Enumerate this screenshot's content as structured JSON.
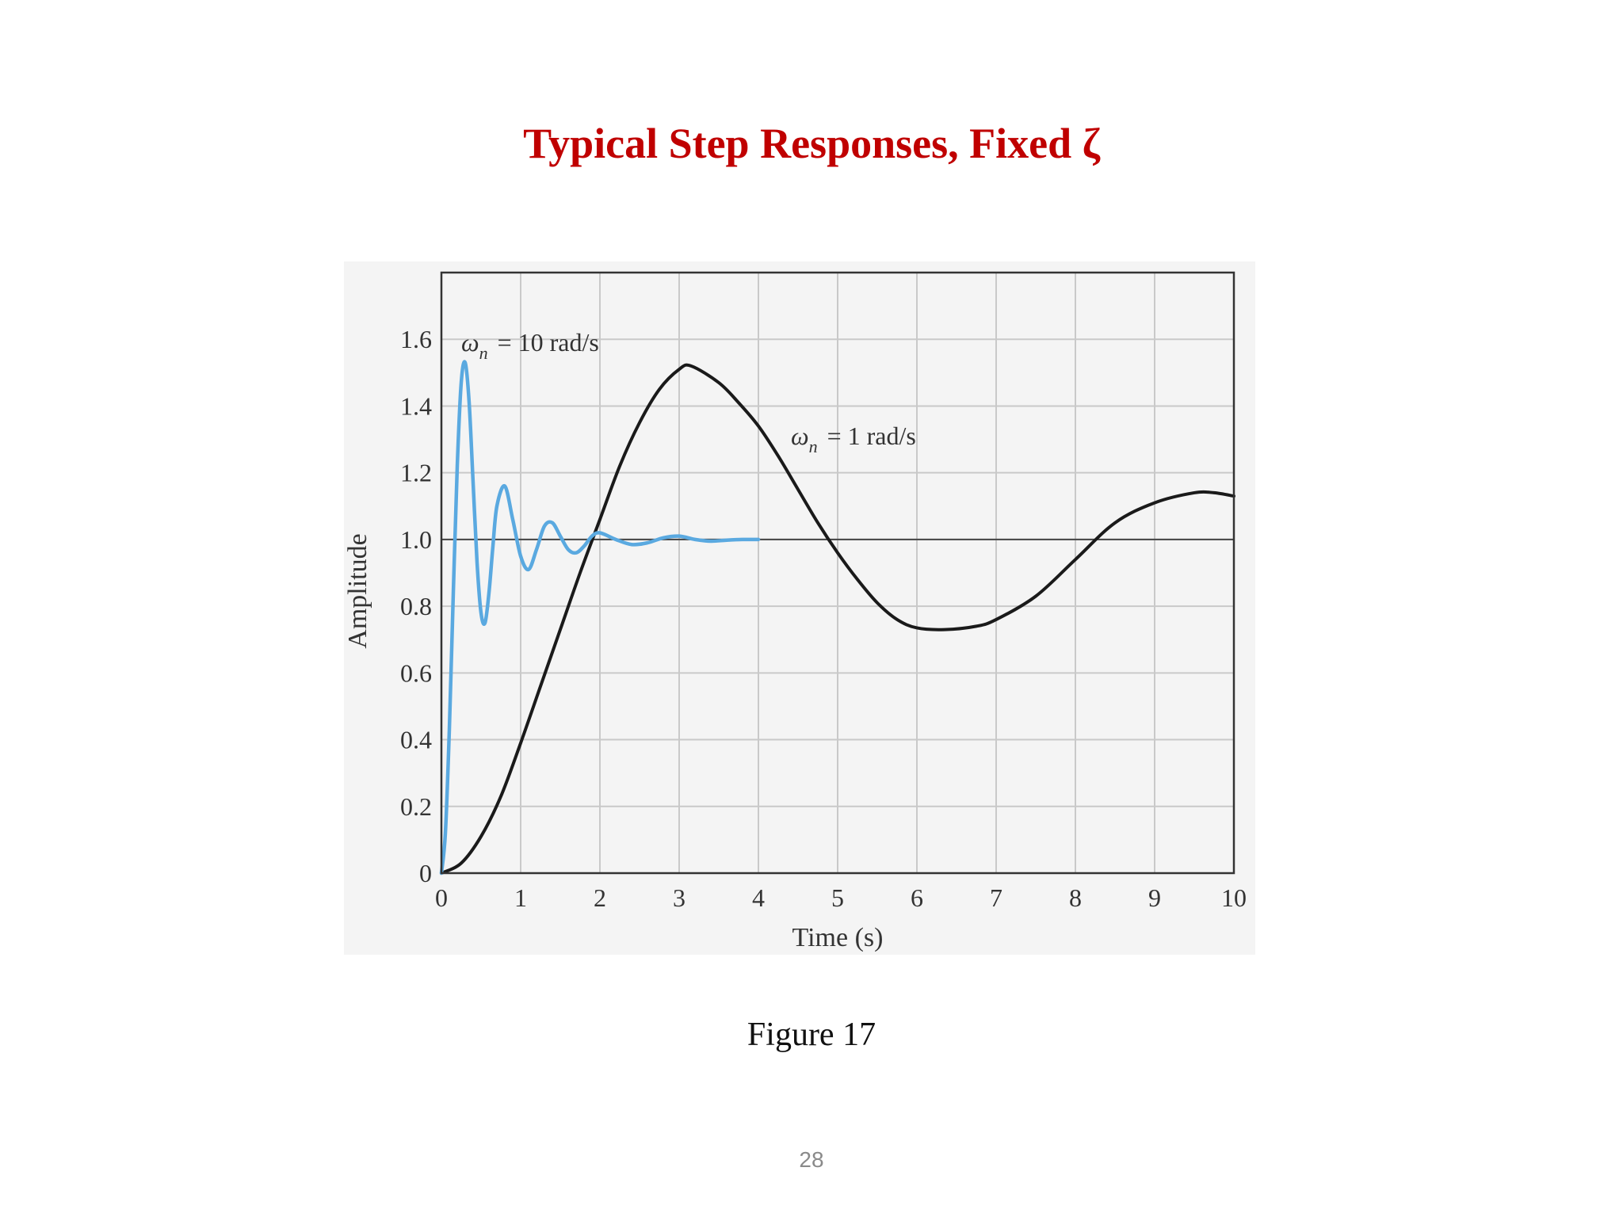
{
  "slide": {
    "title": "Typical Step Responses, Fixed ζ",
    "caption": "Figure 17",
    "page_number": "28"
  },
  "chart_data": {
    "type": "line",
    "xlabel": "Time (s)",
    "ylabel": "Amplitude",
    "xlim": [
      0,
      10
    ],
    "ylim": [
      0,
      1.8
    ],
    "xticks": [
      0,
      1,
      2,
      3,
      4,
      5,
      6,
      7,
      8,
      9,
      10
    ],
    "xtick_labels": [
      "0",
      "1",
      "2",
      "3",
      "4",
      "5",
      "6",
      "7",
      "8",
      "9",
      "10"
    ],
    "yticks": [
      0,
      0.2,
      0.4,
      0.6,
      0.8,
      1.0,
      1.2,
      1.4,
      1.6
    ],
    "ytick_labels": [
      "0",
      "0.2",
      "0.4",
      "0.6",
      "0.8",
      "1.0",
      "1.2",
      "1.4",
      "1.6"
    ],
    "grid": true,
    "reference_line": {
      "y": 1.0
    },
    "series": [
      {
        "name": "ω",
        "subscript": "n",
        "label_value": "= 10 rad/s",
        "color": "#5aa9e0",
        "x": [
          0,
          0.05,
          0.1,
          0.15,
          0.2,
          0.25,
          0.3,
          0.35,
          0.4,
          0.45,
          0.5,
          0.55,
          0.6,
          0.65,
          0.7,
          0.8,
          0.9,
          1.0,
          1.1,
          1.2,
          1.3,
          1.4,
          1.5,
          1.6,
          1.7,
          1.8,
          1.9,
          2.0,
          2.2,
          2.4,
          2.6,
          2.8,
          3.0,
          3.2,
          3.4,
          3.6,
          3.8,
          4.0
        ],
        "y": [
          0,
          0.12,
          0.43,
          0.84,
          1.22,
          1.47,
          1.53,
          1.41,
          1.17,
          0.93,
          0.78,
          0.75,
          0.84,
          0.98,
          1.1,
          1.16,
          1.06,
          0.95,
          0.91,
          0.97,
          1.04,
          1.05,
          1.01,
          0.97,
          0.96,
          0.98,
          1.01,
          1.02,
          1.0,
          0.985,
          0.99,
          1.005,
          1.01,
          1.0,
          0.995,
          0.998,
          1.0,
          1.0
        ]
      },
      {
        "name": "ω",
        "subscript": "n",
        "label_value": "= 1 rad/s",
        "color": "#1a1a1a",
        "x": [
          0,
          0.25,
          0.5,
          0.75,
          1.0,
          1.25,
          1.5,
          1.75,
          2.0,
          2.25,
          2.5,
          2.75,
          3.0,
          3.15,
          3.5,
          3.75,
          4.0,
          4.25,
          4.5,
          4.75,
          5.0,
          5.25,
          5.5,
          5.75,
          6.0,
          6.35,
          6.75,
          7.0,
          7.5,
          8.0,
          8.5,
          9.0,
          9.5,
          9.75,
          10.0
        ],
        "y": [
          0,
          0.03,
          0.11,
          0.23,
          0.39,
          0.56,
          0.73,
          0.9,
          1.06,
          1.22,
          1.35,
          1.45,
          1.51,
          1.52,
          1.47,
          1.41,
          1.34,
          1.25,
          1.15,
          1.05,
          0.96,
          0.88,
          0.81,
          0.76,
          0.735,
          0.73,
          0.74,
          0.76,
          0.83,
          0.94,
          1.05,
          1.11,
          1.14,
          1.14,
          1.13
        ]
      }
    ]
  }
}
